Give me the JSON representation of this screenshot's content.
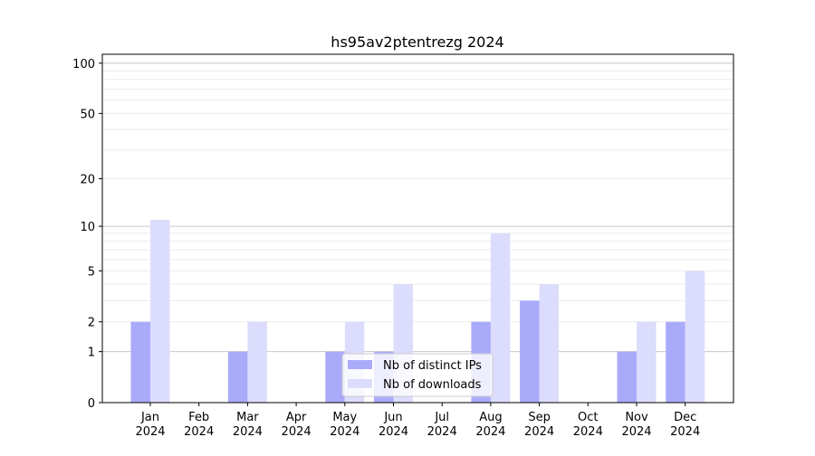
{
  "chart_data": {
    "type": "bar",
    "title": "hs95av2ptentrezg 2024",
    "categories": [
      "Jan\n2024",
      "Feb\n2024",
      "Mar\n2024",
      "Apr\n2024",
      "May\n2024",
      "Jun\n2024",
      "Jul\n2024",
      "Aug\n2024",
      "Sep\n2024",
      "Oct\n2024",
      "Nov\n2024",
      "Dec\n2024"
    ],
    "series": [
      {
        "name": "Nb of distinct IPs",
        "color": "#aaaafb",
        "values": [
          2,
          0,
          1,
          0,
          1,
          1,
          0,
          2,
          3,
          0,
          1,
          2
        ]
      },
      {
        "name": "Nb of downloads",
        "color": "#dcdcfc",
        "values": [
          11,
          0,
          2,
          0,
          2,
          4,
          0,
          9,
          4,
          0,
          2,
          5
        ]
      }
    ],
    "yscale": "symlog",
    "yticks": [
      0,
      1,
      2,
      5,
      10,
      20,
      50,
      100
    ],
    "ylim": [
      0,
      113
    ],
    "grid": true,
    "legend": "lower-center",
    "xlabel": "",
    "ylabel": ""
  }
}
